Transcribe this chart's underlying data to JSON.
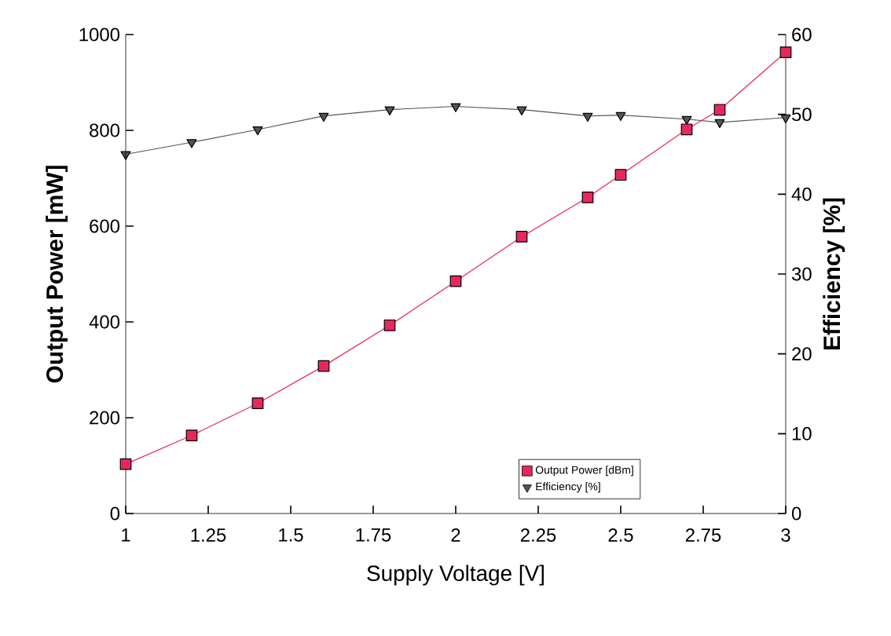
{
  "chart_data": {
    "type": "line",
    "xlabel": "Supply Voltage [V]",
    "ylabel": "Output Power [mW]",
    "y2label": "Efficiency [%]",
    "xlim": [
      1,
      3
    ],
    "xticks": [
      1,
      {
        "value": 1.25,
        "label": "1.25"
      },
      {
        "value": 1.5,
        "label": "1.5"
      },
      {
        "value": 1.75,
        "label": "1.75"
      },
      2,
      {
        "value": 2.25,
        "label": "2.25"
      },
      {
        "value": 2.5,
        "label": "2.5"
      },
      {
        "value": 2.75,
        "label": "2.75"
      },
      3
    ],
    "ylim": [
      0,
      1000
    ],
    "yticks": [
      0,
      200,
      400,
      600,
      800,
      1000
    ],
    "y2lim": [
      0,
      60
    ],
    "y2ticks": [
      0,
      10,
      20,
      30,
      40,
      50,
      60
    ],
    "grid": false,
    "legend": "bottom right",
    "series": [
      {
        "name": "Output Power [dBm]",
        "color": "#e8285c",
        "marker": "square",
        "x": [
          1,
          1.2,
          1.4,
          1.6,
          1.8,
          2.0,
          2.2,
          2.4,
          2.5,
          2.7,
          2.8,
          3.0
        ],
        "values": [
          103,
          163,
          230,
          308,
          393,
          485,
          578,
          660,
          707,
          802,
          843,
          963
        ]
      },
      {
        "name": "Efficiency [%]",
        "color": "#555555",
        "marker": "triangle",
        "axis": "y2",
        "x": [
          1,
          1.2,
          1.4,
          1.6,
          1.8,
          2.0,
          2.2,
          2.4,
          2.5,
          2.7,
          2.8,
          3.0
        ],
        "values": [
          45,
          46.5,
          48.1,
          49.8,
          50.6,
          51,
          50.6,
          49.8,
          49.9,
          49.4,
          49.0,
          49.6
        ]
      }
    ]
  }
}
